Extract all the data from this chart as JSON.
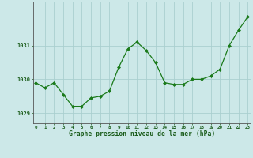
{
  "hours": [
    0,
    1,
    2,
    3,
    4,
    5,
    6,
    7,
    8,
    9,
    10,
    11,
    12,
    13,
    14,
    15,
    16,
    17,
    18,
    19,
    20,
    21,
    22,
    23
  ],
  "pressure": [
    1029.9,
    1029.75,
    1029.9,
    1029.55,
    1029.2,
    1029.2,
    1029.45,
    1029.5,
    1029.65,
    1030.35,
    1030.9,
    1031.1,
    1030.85,
    1030.5,
    1029.9,
    1029.85,
    1029.85,
    1030.0,
    1030.0,
    1030.1,
    1030.3,
    1031.0,
    1031.45,
    1031.85
  ],
  "line_color": "#1a7a1a",
  "marker_color": "#1a7a1a",
  "bg_color": "#cce8e8",
  "grid_color": "#aacfcf",
  "axis_color": "#555555",
  "tick_color": "#1a5c1a",
  "ylabel_ticks": [
    1029,
    1030,
    1031
  ],
  "xlabel": "Graphe pression niveau de la mer (hPa)",
  "xlabel_color": "#1a5c1a",
  "ylim": [
    1028.7,
    1032.3
  ],
  "xlim": [
    -0.3,
    23.3
  ]
}
